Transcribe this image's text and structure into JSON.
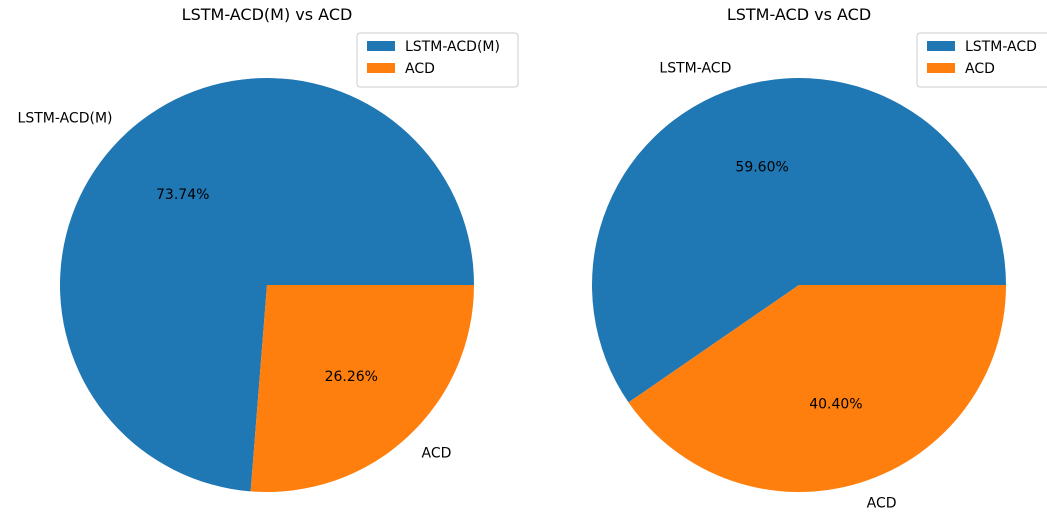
{
  "chart_data": [
    {
      "type": "pie",
      "title": "LSTM-ACD(M) vs ACD",
      "labels": [
        "LSTM-ACD(M)",
        "ACD"
      ],
      "values": [
        73.74,
        26.26
      ],
      "percent_labels": [
        "73.74%",
        "26.26%"
      ],
      "colors": [
        "#1f77b4",
        "#ff7f0e"
      ],
      "start_angle_deg": 0,
      "direction": "counterclockwise",
      "legend": {
        "placement": "top-right",
        "entries": [
          "LSTM-ACD(M)",
          "ACD"
        ]
      }
    },
    {
      "type": "pie",
      "title": "LSTM-ACD vs ACD",
      "labels": [
        "LSTM-ACD",
        "ACD"
      ],
      "values": [
        59.6,
        40.4
      ],
      "percent_labels": [
        "59.60%",
        "40.40%"
      ],
      "colors": [
        "#1f77b4",
        "#ff7f0e"
      ],
      "start_angle_deg": 0,
      "direction": "counterclockwise",
      "legend": {
        "placement": "top-right",
        "entries": [
          "LSTM-ACD",
          "ACD"
        ]
      }
    }
  ]
}
